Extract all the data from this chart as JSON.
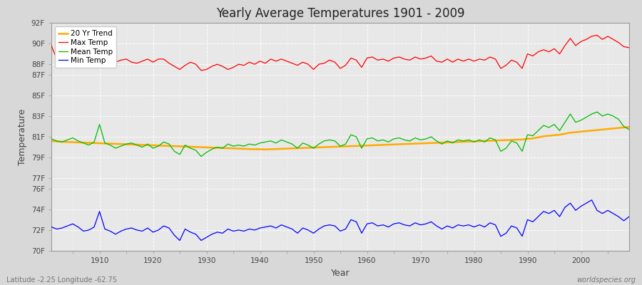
{
  "title": "Yearly Average Temperatures 1901 - 2009",
  "xlabel": "Year",
  "ylabel": "Temperature",
  "legend_labels": [
    "Max Temp",
    "Mean Temp",
    "Min Temp",
    "20 Yr Trend"
  ],
  "legend_colors": [
    "#ff0000",
    "#00bb00",
    "#0000ff",
    "#ffaa00"
  ],
  "bottom_left": "Latitude -2.25 Longitude -62.75",
  "bottom_right": "worldspecies.org",
  "ylim": [
    70,
    92
  ],
  "yticks": [
    70,
    72,
    74,
    76,
    77,
    79,
    81,
    83,
    85,
    87,
    88,
    90,
    92
  ],
  "ytick_labels": [
    "70F",
    "72F",
    "74F",
    "76F",
    "77F",
    "79F",
    "81F",
    "83F",
    "85F",
    "87F",
    "88F",
    "90F",
    "92F"
  ],
  "years": [
    1901,
    1902,
    1903,
    1904,
    1905,
    1906,
    1907,
    1908,
    1909,
    1910,
    1911,
    1912,
    1913,
    1914,
    1915,
    1916,
    1917,
    1918,
    1919,
    1920,
    1921,
    1922,
    1923,
    1924,
    1925,
    1926,
    1927,
    1928,
    1929,
    1930,
    1931,
    1932,
    1933,
    1934,
    1935,
    1936,
    1937,
    1938,
    1939,
    1940,
    1941,
    1942,
    1943,
    1944,
    1945,
    1946,
    1947,
    1948,
    1949,
    1950,
    1951,
    1952,
    1953,
    1954,
    1955,
    1956,
    1957,
    1958,
    1959,
    1960,
    1961,
    1962,
    1963,
    1964,
    1965,
    1966,
    1967,
    1968,
    1969,
    1970,
    1971,
    1972,
    1973,
    1974,
    1975,
    1976,
    1977,
    1978,
    1979,
    1980,
    1981,
    1982,
    1983,
    1984,
    1985,
    1986,
    1987,
    1988,
    1989,
    1990,
    1991,
    1992,
    1993,
    1994,
    1995,
    1996,
    1997,
    1998,
    1999,
    2000,
    2001,
    2002,
    2003,
    2004,
    2005,
    2006,
    2007,
    2008,
    2009
  ],
  "max_temp": [
    89.8,
    88.5,
    88.3,
    88.6,
    88.8,
    88.4,
    88.5,
    88.6,
    88.7,
    88.3,
    88.5,
    88.6,
    88.2,
    88.4,
    88.5,
    88.2,
    88.1,
    88.3,
    88.5,
    88.2,
    88.5,
    88.5,
    88.1,
    87.8,
    87.5,
    87.9,
    88.2,
    88.0,
    87.4,
    87.5,
    87.8,
    88.0,
    87.8,
    87.5,
    87.7,
    88.0,
    87.9,
    88.2,
    88.0,
    88.3,
    88.1,
    88.5,
    88.3,
    88.5,
    88.3,
    88.1,
    87.9,
    88.2,
    88.0,
    87.5,
    88.0,
    88.1,
    88.4,
    88.2,
    87.6,
    87.9,
    88.6,
    88.4,
    87.7,
    88.6,
    88.7,
    88.4,
    88.5,
    88.3,
    88.6,
    88.7,
    88.5,
    88.4,
    88.7,
    88.5,
    88.6,
    88.8,
    88.3,
    88.2,
    88.5,
    88.2,
    88.5,
    88.3,
    88.5,
    88.3,
    88.5,
    88.4,
    88.7,
    88.5,
    87.6,
    87.9,
    88.4,
    88.2,
    87.6,
    89.0,
    88.8,
    89.2,
    89.4,
    89.2,
    89.5,
    89.0,
    89.8,
    90.5,
    89.8,
    90.2,
    90.4,
    90.7,
    90.8,
    90.4,
    90.7,
    90.4,
    90.1,
    89.7,
    89.6
  ],
  "mean_temp": [
    80.8,
    80.6,
    80.5,
    80.7,
    80.9,
    80.6,
    80.4,
    80.2,
    80.5,
    82.2,
    80.4,
    80.2,
    79.9,
    80.1,
    80.3,
    80.4,
    80.2,
    80.0,
    80.3,
    79.9,
    80.1,
    80.5,
    80.3,
    79.6,
    79.3,
    80.2,
    79.9,
    79.7,
    79.1,
    79.5,
    79.8,
    80.0,
    79.9,
    80.3,
    80.1,
    80.2,
    80.1,
    80.3,
    80.2,
    80.4,
    80.5,
    80.6,
    80.4,
    80.7,
    80.5,
    80.3,
    79.9,
    80.4,
    80.2,
    79.9,
    80.3,
    80.6,
    80.7,
    80.6,
    80.1,
    80.3,
    81.2,
    81.0,
    79.9,
    80.8,
    80.9,
    80.6,
    80.7,
    80.5,
    80.8,
    80.9,
    80.7,
    80.6,
    80.9,
    80.7,
    80.8,
    81.0,
    80.6,
    80.3,
    80.6,
    80.4,
    80.7,
    80.6,
    80.7,
    80.5,
    80.7,
    80.5,
    80.9,
    80.7,
    79.6,
    79.9,
    80.6,
    80.4,
    79.6,
    81.2,
    81.1,
    81.6,
    82.1,
    81.9,
    82.2,
    81.6,
    82.4,
    83.2,
    82.4,
    82.6,
    82.9,
    83.2,
    83.4,
    83.0,
    83.2,
    83.0,
    82.7,
    82.0,
    81.7
  ],
  "min_temp": [
    72.3,
    72.1,
    72.2,
    72.4,
    72.6,
    72.3,
    71.9,
    72.0,
    72.3,
    73.8,
    72.1,
    71.9,
    71.6,
    71.9,
    72.1,
    72.2,
    72.0,
    71.9,
    72.2,
    71.8,
    72.0,
    72.4,
    72.2,
    71.5,
    71.0,
    72.1,
    71.8,
    71.6,
    71.0,
    71.3,
    71.6,
    71.8,
    71.7,
    72.1,
    71.9,
    72.0,
    71.9,
    72.1,
    72.0,
    72.2,
    72.3,
    72.4,
    72.2,
    72.5,
    72.3,
    72.1,
    71.7,
    72.2,
    72.0,
    71.7,
    72.1,
    72.4,
    72.5,
    72.4,
    71.9,
    72.1,
    73.0,
    72.8,
    71.7,
    72.6,
    72.7,
    72.4,
    72.5,
    72.3,
    72.6,
    72.7,
    72.5,
    72.4,
    72.7,
    72.5,
    72.6,
    72.8,
    72.4,
    72.1,
    72.4,
    72.2,
    72.5,
    72.4,
    72.5,
    72.3,
    72.5,
    72.3,
    72.7,
    72.5,
    71.4,
    71.7,
    72.4,
    72.2,
    71.4,
    73.0,
    72.8,
    73.3,
    73.8,
    73.6,
    73.9,
    73.3,
    74.2,
    74.6,
    73.9,
    74.3,
    74.6,
    74.9,
    73.9,
    73.6,
    73.9,
    73.6,
    73.3,
    72.9,
    73.3
  ],
  "trend": [
    80.6,
    80.55,
    80.52,
    80.5,
    80.48,
    80.46,
    80.44,
    80.42,
    80.4,
    80.38,
    80.36,
    80.34,
    80.32,
    80.3,
    80.28,
    80.26,
    80.24,
    80.22,
    80.2,
    80.18,
    80.16,
    80.14,
    80.12,
    80.1,
    80.08,
    80.06,
    80.04,
    80.02,
    80.0,
    79.98,
    79.96,
    79.94,
    79.92,
    79.9,
    79.88,
    79.86,
    79.84,
    79.82,
    79.8,
    79.8,
    79.78,
    79.8,
    79.82,
    79.84,
    79.86,
    79.88,
    79.9,
    79.92,
    79.94,
    79.96,
    79.98,
    80.0,
    80.02,
    80.04,
    80.06,
    80.08,
    80.1,
    80.12,
    80.14,
    80.16,
    80.18,
    80.2,
    80.22,
    80.24,
    80.26,
    80.28,
    80.3,
    80.32,
    80.34,
    80.36,
    80.38,
    80.4,
    80.42,
    80.44,
    80.46,
    80.48,
    80.5,
    80.52,
    80.54,
    80.56,
    80.58,
    80.6,
    80.62,
    80.64,
    80.66,
    80.68,
    80.7,
    80.72,
    80.74,
    80.8,
    80.85,
    80.95,
    81.05,
    81.1,
    81.15,
    81.2,
    81.3,
    81.4,
    81.45,
    81.5,
    81.55,
    81.6,
    81.65,
    81.7,
    81.75,
    81.8,
    81.85,
    81.9,
    81.95
  ],
  "bg_color": "#d8d8d8",
  "plot_bg_color": "#e8e8e8",
  "grid_color": "#ffffff",
  "xticks": [
    1910,
    1920,
    1930,
    1940,
    1950,
    1960,
    1970,
    1980,
    1990,
    2000
  ],
  "xlim": [
    1901,
    2009
  ]
}
